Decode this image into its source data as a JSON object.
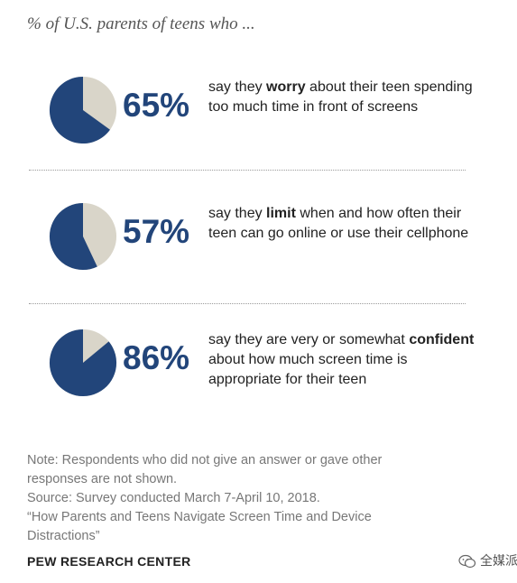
{
  "subtitle": "% of U.S. parents of teens who ...",
  "chart_data": {
    "type": "pie",
    "title": "",
    "colors": {
      "share": "#22457a",
      "rest": "#d9d5c9",
      "percent_text": "#22457a"
    },
    "items": [
      {
        "value": 65,
        "label": "65%",
        "text": {
          "pre": "say they ",
          "key": "worry",
          "post": " about their teen spending too much time in front of screens"
        }
      },
      {
        "value": 57,
        "label": "57%",
        "text": {
          "pre": "say they ",
          "key": "limit",
          "post": " when and how often their teen can go online or use their cellphone"
        }
      },
      {
        "value": 86,
        "label": "86%",
        "text": {
          "pre": "say they are very or somewhat ",
          "key": "confident",
          "post": " about how much screen time is appropriate for their teen"
        }
      }
    ]
  },
  "notes": {
    "line1": "Note: Respondents who did not give an answer or gave other",
    "line2": "responses are not shown.",
    "line3": "Source: Survey conducted March 7-April 10, 2018.",
    "line4": "“How Parents and Teens Navigate Screen Time and Device",
    "line5": "Distractions”"
  },
  "source_org": "PEW RESEARCH CENTER",
  "watermark": {
    "text": "全媒派",
    "icon": "wechat-icon"
  }
}
